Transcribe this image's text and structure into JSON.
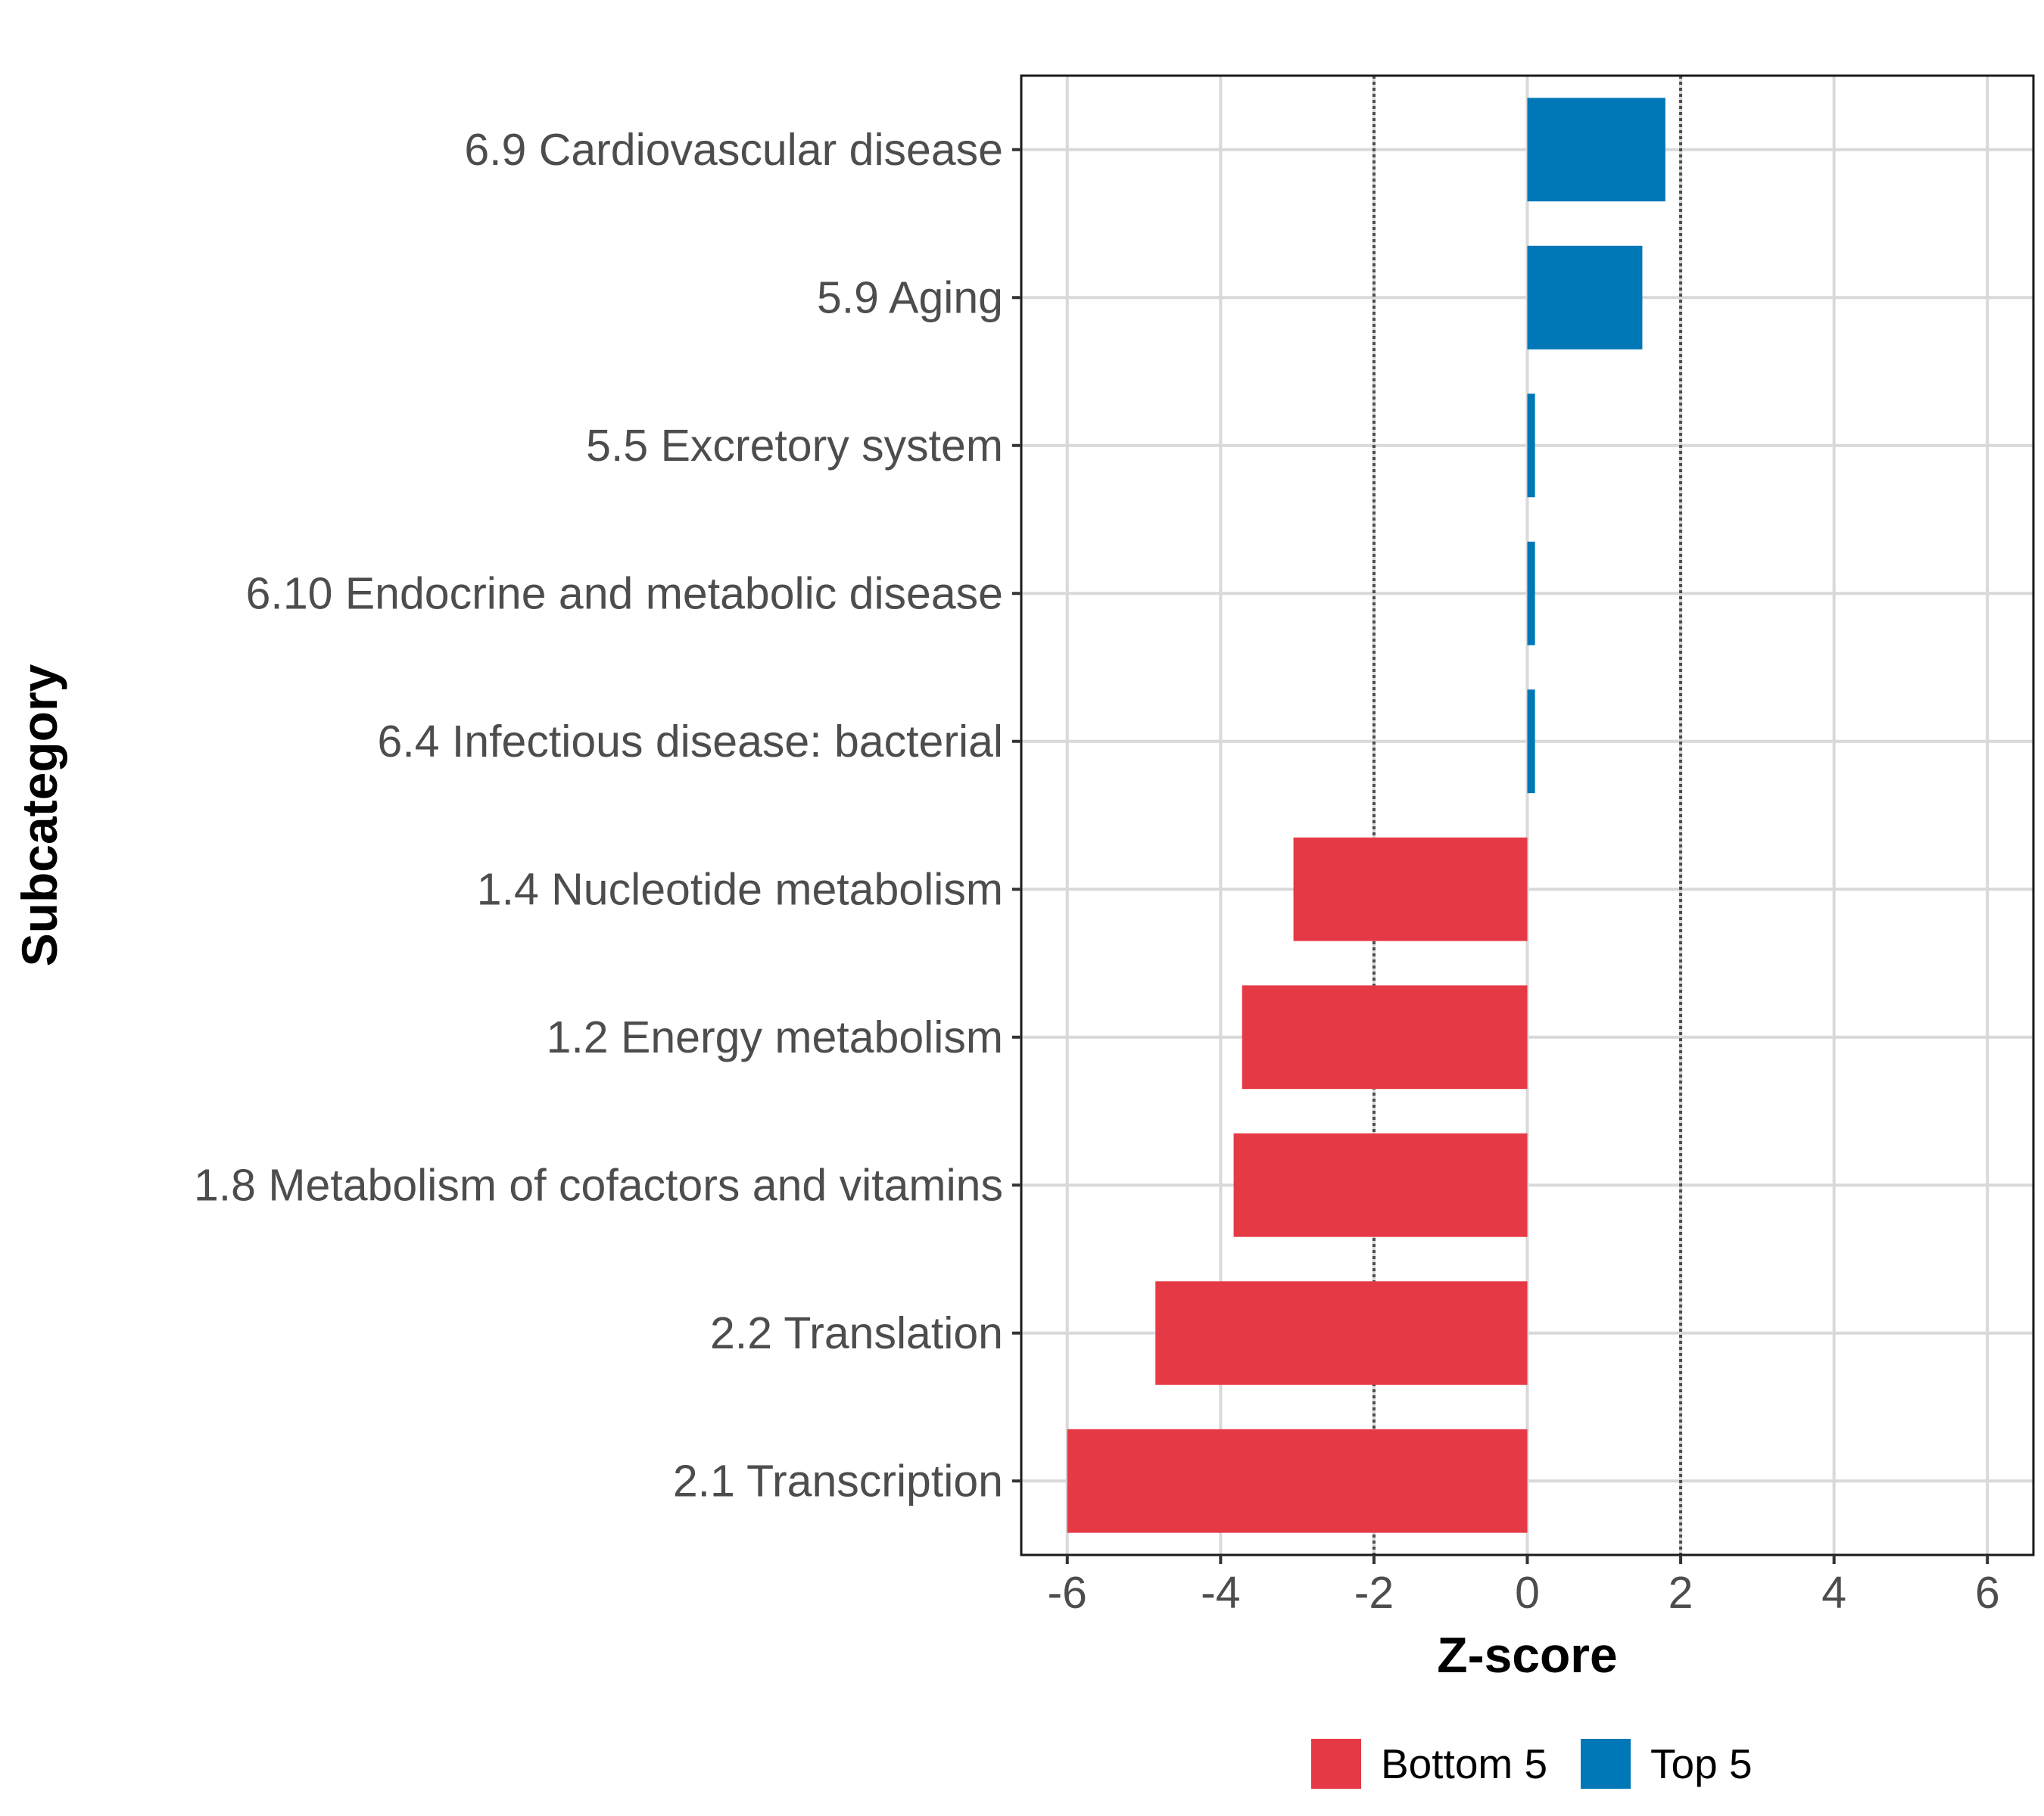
{
  "chart_data": {
    "type": "bar",
    "orientation": "horizontal",
    "title": "",
    "xlabel": "Z-score",
    "ylabel": "Subcategory",
    "xlim": [
      -6.6,
      6.6
    ],
    "xticks": [
      -6,
      -4,
      -2,
      0,
      2,
      4,
      6
    ],
    "xtick_labels": [
      "-6",
      "-4",
      "-2",
      "0",
      "2",
      "4",
      "6"
    ],
    "reference_lines": [
      -2,
      2
    ],
    "grid": true,
    "legend_position": "bottom",
    "categories": [
      "6.9 Cardiovascular disease",
      "5.9 Aging",
      "5.5 Excretory system",
      "6.10 Endocrine and metabolic disease",
      "6.4 Infectious disease: bacterial",
      "1.4 Nucleotide metabolism",
      "1.2 Energy metabolism",
      "1.8 Metabolism of cofactors and vitamins",
      "2.2 Translation",
      "2.1 Transcription"
    ],
    "values": [
      1.8,
      1.5,
      0.1,
      0.1,
      0.1,
      -3.05,
      -3.72,
      -3.83,
      -4.85,
      -6.0
    ],
    "groups": [
      "Top 5",
      "Top 5",
      "Top 5",
      "Top 5",
      "Top 5",
      "Bottom 5",
      "Bottom 5",
      "Bottom 5",
      "Bottom 5",
      "Bottom 5"
    ],
    "series": [
      {
        "name": "Bottom 5",
        "color": "#e63946"
      },
      {
        "name": "Top 5",
        "color": "#0077b6"
      }
    ]
  }
}
